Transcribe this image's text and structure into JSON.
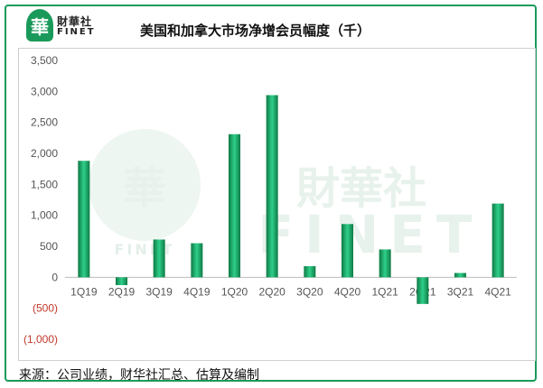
{
  "brand": {
    "logo_char": "華",
    "name_cn": "財華社",
    "name_en": "FINET"
  },
  "watermark": {
    "logo_char": "華",
    "text_cn": "財華社",
    "text_en": "FINET",
    "sub_en": "FINET"
  },
  "title": "美国和加拿大市场净增会员幅度（千）",
  "source": "来源：公司业绩，财华社汇总、估算及编制",
  "colors": {
    "bar_top": "#2ecf8a",
    "bar_bottom": "#0e7a44",
    "frame": "#1a9a5a",
    "negative_tick": "#c0392b"
  },
  "chart_data": {
    "type": "bar",
    "title": "美国和加拿大市场净增会员幅度（千）",
    "xlabel": "",
    "ylabel": "",
    "ylim": [
      -1000,
      3500
    ],
    "yticks": [
      3500,
      3000,
      2500,
      2000,
      1500,
      1000,
      500,
      0,
      -500,
      -1000
    ],
    "ytick_labels": [
      "3,500",
      "3,000",
      "2,500",
      "2,000",
      "1,500",
      "1,000",
      "500",
      "0",
      "(500)",
      "(1,000)"
    ],
    "gridlines": false,
    "categories": [
      "1Q19",
      "2Q19",
      "3Q19",
      "4Q19",
      "1Q20",
      "2Q20",
      "3Q20",
      "4Q20",
      "1Q21",
      "2Q21",
      "3Q21",
      "4Q21"
    ],
    "values": [
      1880,
      -126,
      610,
      550,
      2310,
      2940,
      180,
      860,
      450,
      -430,
      70,
      1190
    ]
  }
}
